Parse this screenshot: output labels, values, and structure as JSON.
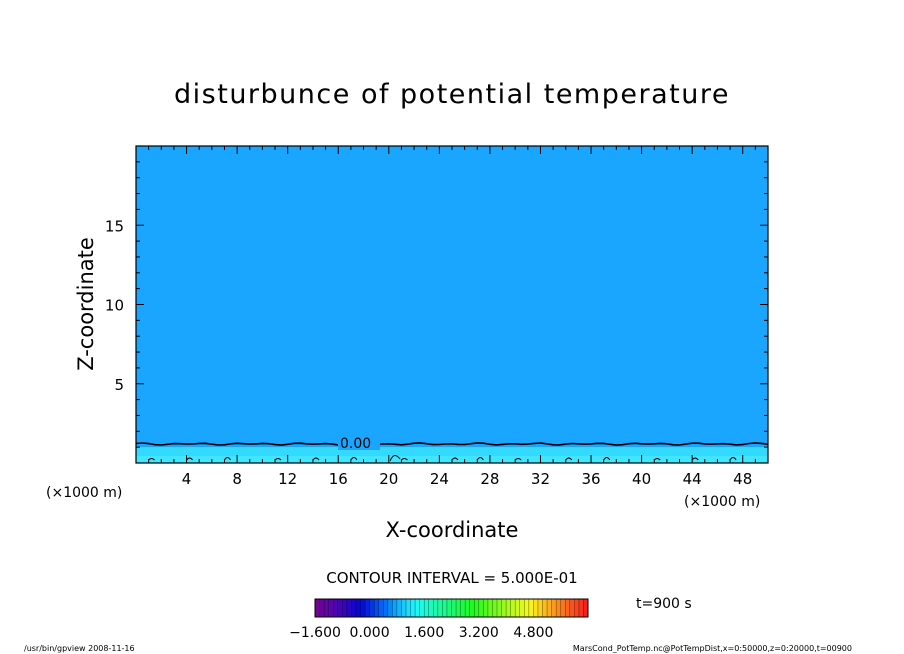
{
  "chart_data": {
    "type": "heatmap",
    "title": "disturbunce of potential temperature",
    "xlabel": "X-coordinate",
    "ylabel": "Z-coordinate",
    "x_unit_left": "(×1000 m)",
    "x_unit_right": "(×1000 m)",
    "xlim": [
      0,
      50
    ],
    "ylim": [
      0,
      20
    ],
    "x_ticks": [
      "4",
      "8",
      "12",
      "16",
      "20",
      "24",
      "28",
      "32",
      "36",
      "40",
      "44",
      "48"
    ],
    "y_ticks": [
      "5",
      "10",
      "15"
    ],
    "fill_color": "#1aa6ff",
    "boundary_layer_color": "#33d9ff",
    "contour_level_label": "0.00",
    "contour_height": 1.2,
    "contour_interval_text": "CONTOUR INTERVAL = 5.000E-01",
    "colorbar_labels": [
      "−1.600",
      "0.000",
      "1.600",
      "3.200",
      "4.800"
    ],
    "colorbar_range": [
      -1.6,
      6.4
    ],
    "time_label": "t=900 s"
  },
  "footer": {
    "left": "/usr/bin/gpview   2008-11-16",
    "right": "MarsCond_PotTemp.nc@PotTempDist,x=0:50000,z=0:20000,t=00900"
  }
}
